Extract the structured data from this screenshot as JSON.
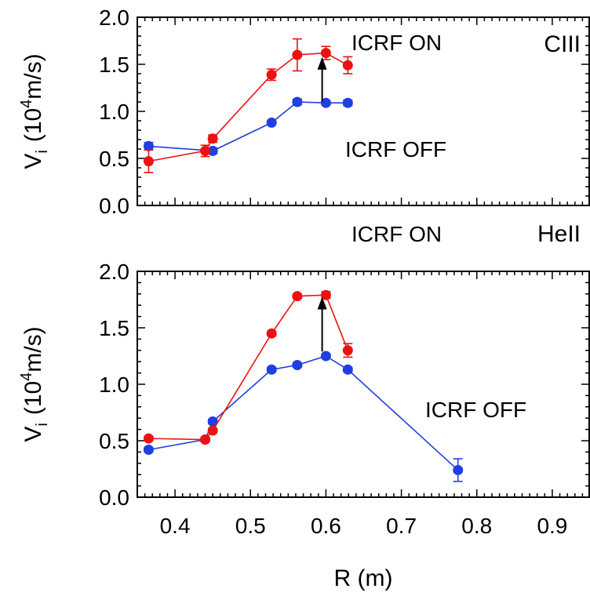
{
  "chart_data": [
    {
      "type": "line",
      "panel_label": "CIII",
      "ylabel": "V",
      "ylabel_sub": "i",
      "ylabel_paren_open": "(10",
      "ylabel_sup": "4",
      "ylabel_unit": "m/s)",
      "ylim": [
        0,
        2.0
      ],
      "yticks": [
        "0.0",
        "0.5",
        "1.0",
        "1.5",
        "2.0"
      ],
      "annotations": {
        "on": "ICRF ON",
        "off": "ICRF OFF"
      },
      "series": [
        {
          "color": "#1f3fe0",
          "x": [
            0.365,
            0.45,
            0.528,
            0.562,
            0.6,
            0.629
          ],
          "y": [
            0.63,
            0.58,
            0.88,
            1.1,
            1.09,
            1.09
          ],
          "err": [
            0.04,
            0.03,
            0.02,
            0.03,
            0.02,
            0.03
          ]
        },
        {
          "color": "#ee1111",
          "x": [
            0.365,
            0.44,
            0.45,
            0.528,
            0.562,
            0.6,
            0.629
          ],
          "y": [
            0.47,
            0.58,
            0.71,
            1.39,
            1.6,
            1.62,
            1.49
          ],
          "err": [
            0.12,
            0.06,
            0.04,
            0.06,
            0.17,
            0.07,
            0.09
          ]
        }
      ],
      "arrow": {
        "x": 0.595,
        "y_from": 1.1,
        "y_to": 1.56
      }
    },
    {
      "type": "line",
      "panel_label": "HeII",
      "ylabel": "V",
      "ylabel_sub": "i",
      "ylabel_paren_open": "(10",
      "ylabel_sup": "4",
      "ylabel_unit": "m/s)",
      "ylim": [
        0,
        2.0
      ],
      "yticks": [
        "0.0",
        "0.5",
        "1.0",
        "1.5",
        "2.0"
      ],
      "xlim": [
        0.35,
        0.95
      ],
      "xticks": [
        "0.4",
        "0.5",
        "0.6",
        "0.7",
        "0.8",
        "0.9"
      ],
      "xtick_values": [
        0.4,
        0.5,
        0.6,
        0.7,
        0.8,
        0.9
      ],
      "xlabel": "R (m)",
      "annotations": {
        "on": "ICRF ON",
        "off": "ICRF OFF"
      },
      "series": [
        {
          "color": "#1f3fe0",
          "x": [
            0.365,
            0.44,
            0.45,
            0.528,
            0.562,
            0.6,
            0.629,
            0.775
          ],
          "y": [
            0.42,
            0.51,
            0.67,
            1.13,
            1.17,
            1.25,
            1.13,
            0.24
          ],
          "err": [
            0.02,
            0.02,
            0.02,
            0.02,
            0.02,
            0.02,
            0.02,
            0.1
          ]
        },
        {
          "color": "#ee1111",
          "x": [
            0.365,
            0.44,
            0.45,
            0.528,
            0.562,
            0.6,
            0.629
          ],
          "y": [
            0.52,
            0.51,
            0.59,
            1.45,
            1.78,
            1.79,
            1.3
          ],
          "err": [
            0.02,
            0.02,
            0.02,
            0.02,
            0.02,
            0.03,
            0.06
          ]
        }
      ],
      "arrow": {
        "x": 0.595,
        "y_from": 1.29,
        "y_to": 1.76
      }
    }
  ]
}
